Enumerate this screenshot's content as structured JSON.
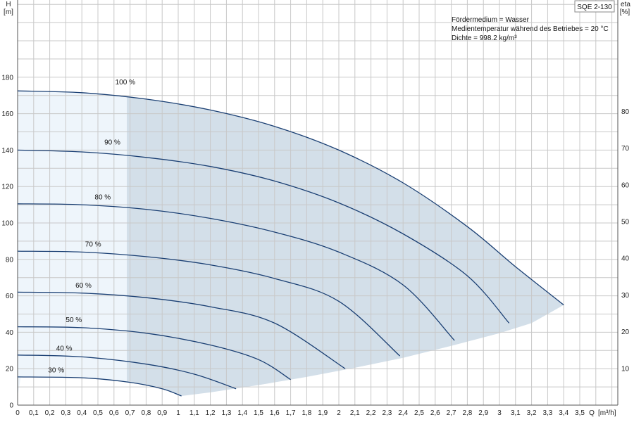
{
  "chart_data": {
    "type": "line",
    "title": "SQE 2-130",
    "info_lines": [
      "Fördermedium = Wasser",
      "Medientemperatur während des Betriebes = 20 °C",
      "Dichte = 998.2 kg/m³"
    ],
    "x_axis": {
      "label_q": "Q",
      "label_unit": "[m³/h]",
      "range": [
        0,
        3.7
      ],
      "ticks": [
        "0",
        "0,1",
        "0,2",
        "0,3",
        "0,4",
        "0,5",
        "0,6",
        "0,7",
        "0,8",
        "0,9",
        "1",
        "1,1",
        "1,2",
        "1,3",
        "1,4",
        "1,5",
        "1,6",
        "1,7",
        "1,8",
        "1,9",
        "2",
        "2,1",
        "2,2",
        "2,3",
        "2,4",
        "2,5",
        "2,6",
        "2,7",
        "2,8",
        "2,9",
        "3",
        "3,1",
        "3,2",
        "3,3",
        "3,4",
        "3,5"
      ]
    },
    "y_axis_left": {
      "label": "H",
      "unit": "[m]",
      "range": [
        0,
        200
      ],
      "ticks": [
        "0",
        "20",
        "40",
        "60",
        "80",
        "100",
        "120",
        "140",
        "160",
        "180"
      ]
    },
    "y_axis_right": {
      "label": "eta",
      "unit": "[%]",
      "range": [
        0,
        110
      ],
      "ticks": [
        "10",
        "20",
        "30",
        "40",
        "50",
        "60",
        "70",
        "80"
      ]
    },
    "grid": true,
    "operating_range": {
      "fill_color": "#d3dfe9",
      "light_fill_color": "#eef5fb",
      "light_zone_q": [
        0,
        0.68
      ],
      "lower_boundary": [
        [
          1.02,
          5
        ],
        [
          1.2,
          7
        ],
        [
          1.5,
          11
        ],
        [
          1.8,
          15.5
        ],
        [
          2.1,
          20.5
        ],
        [
          2.4,
          26
        ],
        [
          2.7,
          32.5
        ],
        [
          3.0,
          39.5
        ],
        [
          3.2,
          45
        ],
        [
          3.4,
          55
        ]
      ]
    },
    "curve_color": "#1a3f73",
    "series": [
      {
        "name": "100 %",
        "label_at": [
          0.67,
          176
        ],
        "points": [
          [
            0,
            172.5
          ],
          [
            0.4,
            171.5
          ],
          [
            0.8,
            168
          ],
          [
            1.2,
            162
          ],
          [
            1.6,
            153
          ],
          [
            2.0,
            140
          ],
          [
            2.4,
            122
          ],
          [
            2.8,
            98
          ],
          [
            3.1,
            76
          ],
          [
            3.4,
            55
          ]
        ]
      },
      {
        "name": "90 %",
        "label_at": [
          0.59,
          143
        ],
        "points": [
          [
            0,
            140
          ],
          [
            0.4,
            139
          ],
          [
            0.8,
            136
          ],
          [
            1.2,
            131
          ],
          [
            1.6,
            123
          ],
          [
            2.0,
            111
          ],
          [
            2.4,
            94
          ],
          [
            2.8,
            71
          ],
          [
            3.06,
            45
          ]
        ]
      },
      {
        "name": "80 %",
        "label_at": [
          0.53,
          113
        ],
        "points": [
          [
            0,
            110.5
          ],
          [
            0.4,
            110
          ],
          [
            0.8,
            107.5
          ],
          [
            1.2,
            102.5
          ],
          [
            1.6,
            95
          ],
          [
            2.0,
            84
          ],
          [
            2.4,
            66
          ],
          [
            2.72,
            35.5
          ]
        ]
      },
      {
        "name": "70 %",
        "label_at": [
          0.47,
          87
        ],
        "points": [
          [
            0,
            84.5
          ],
          [
            0.4,
            84
          ],
          [
            0.8,
            81.5
          ],
          [
            1.2,
            77
          ],
          [
            1.6,
            69.5
          ],
          [
            2.0,
            57
          ],
          [
            2.38,
            27
          ]
        ]
      },
      {
        "name": "60 %",
        "label_at": [
          0.41,
          64.5
        ],
        "points": [
          [
            0,
            62
          ],
          [
            0.4,
            61.5
          ],
          [
            0.8,
            59
          ],
          [
            1.2,
            54
          ],
          [
            1.6,
            45
          ],
          [
            2.04,
            20
          ]
        ]
      },
      {
        "name": "50 %",
        "label_at": [
          0.35,
          45.5
        ],
        "points": [
          [
            0,
            43
          ],
          [
            0.4,
            42.5
          ],
          [
            0.8,
            39.5
          ],
          [
            1.2,
            33
          ],
          [
            1.5,
            25
          ],
          [
            1.7,
            14
          ]
        ]
      },
      {
        "name": "40 %",
        "label_at": [
          0.29,
          30
        ],
        "points": [
          [
            0,
            27.5
          ],
          [
            0.4,
            26.5
          ],
          [
            0.8,
            22.5
          ],
          [
            1.1,
            17
          ],
          [
            1.36,
            9
          ]
        ]
      },
      {
        "name": "30 %",
        "label_at": [
          0.24,
          18
        ],
        "points": [
          [
            0,
            15.5
          ],
          [
            0.4,
            15
          ],
          [
            0.7,
            12.5
          ],
          [
            0.9,
            9
          ],
          [
            1.02,
            5
          ]
        ]
      }
    ]
  }
}
